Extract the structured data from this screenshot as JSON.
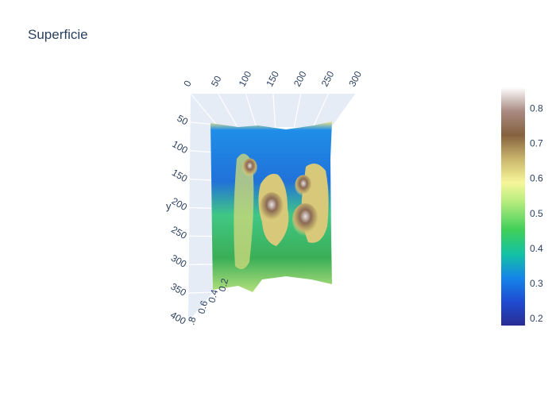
{
  "title": "Superficie",
  "chart_data": {
    "type": "surface",
    "title": "Superficie",
    "x_ticks": [
      "0",
      "50",
      "100",
      "150",
      "200",
      "250",
      "300"
    ],
    "y_axis_label": "y",
    "y_ticks": [
      "50",
      "100",
      "150",
      "200",
      "250",
      "300",
      "350",
      "400"
    ],
    "z_ticks": [
      "0.4",
      "0.6",
      "0.8"
    ],
    "z_tick_visible_text": [
      "0.2",
      "0.4",
      "0.6",
      ".8"
    ],
    "xlim": [
      0,
      300
    ],
    "ylim": [
      0,
      400
    ],
    "zlim": [
      0.2,
      0.85
    ],
    "colorscale": "earth / terrain",
    "colorbar": {
      "ticks": [
        "0.2",
        "0.3",
        "0.4",
        "0.5",
        "0.6",
        "0.7",
        "0.8"
      ],
      "range": [
        0.18,
        0.86
      ]
    },
    "peaks": [
      {
        "x": 150,
        "y": 205,
        "z": 0.75
      },
      {
        "x": 235,
        "y": 235,
        "z": 0.78
      },
      {
        "x": 230,
        "y": 150,
        "z": 0.62
      },
      {
        "x": 95,
        "y": 105,
        "z": 0.58
      }
    ]
  }
}
